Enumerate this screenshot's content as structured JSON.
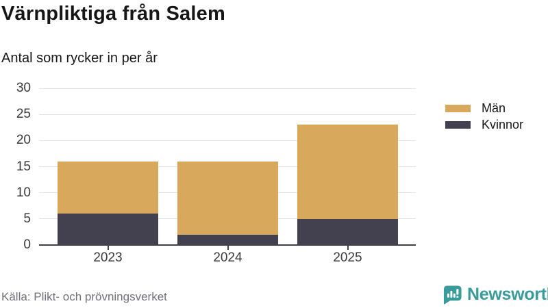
{
  "header": {
    "title": "Värnpliktiga från Salem",
    "subtitle": "Antal som rycker in per år"
  },
  "chart_data": {
    "type": "bar",
    "stacked": true,
    "title": "Värnpliktiga från Salem",
    "subtitle": "Antal som rycker in per år",
    "categories": [
      "2023",
      "2024",
      "2025"
    ],
    "series": [
      {
        "name": "Män",
        "color": "#d8a95c",
        "values": [
          10,
          14,
          18
        ]
      },
      {
        "name": "Kvinnor",
        "color": "#434050",
        "values": [
          6,
          2,
          5
        ]
      }
    ],
    "stack_totals": [
      16,
      16,
      23
    ],
    "xlabel": "",
    "ylabel": "",
    "ylim": [
      0,
      30
    ],
    "yticks": [
      0,
      5,
      10,
      15,
      20,
      25,
      30
    ],
    "grid": true,
    "legend_position": "right"
  },
  "legend": {
    "items": [
      {
        "label": "Män",
        "color": "#d8a95c"
      },
      {
        "label": "Kvinnor",
        "color": "#434050"
      }
    ]
  },
  "footer": {
    "source": "Källa: Plikt- och prövningsverket",
    "brand_name": "Newsworthy",
    "brand_color": "#3a9b9c",
    "brand_icon": "newsworthy-logo-icon"
  },
  "colors": {
    "axis": "#403e4a",
    "gridline": "#e2e2e2",
    "tick_label": "#3a3a3a",
    "title": "#161616",
    "source_text": "#70707a"
  }
}
